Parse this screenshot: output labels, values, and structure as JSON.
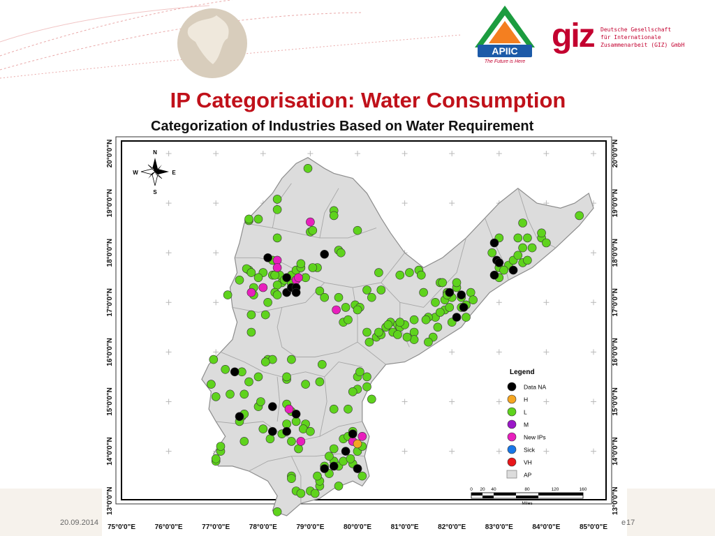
{
  "header": {
    "apiic_logo": {
      "name": "APIIC",
      "tagline": "The Future is Here"
    },
    "giz_logo": {
      "word": "giz",
      "lines": [
        "Deutsche Gesellschaft",
        "für Internationale",
        "Zusammenarbeit (GIZ) GmbH"
      ]
    }
  },
  "slide": {
    "title": "IP Categorisation: Water Consumption",
    "date": "20.09.2014",
    "page_prefix": "e",
    "page_number": "17"
  },
  "map": {
    "title": "Categorization of Industries Based on Water Requirement",
    "compass": {
      "n": "N",
      "s": "S",
      "e": "E",
      "w": "W"
    },
    "x_ticks": [
      "75°0'0\"E",
      "76°0'0\"E",
      "77°0'0\"E",
      "78°0'0\"E",
      "79°0'0\"E",
      "80°0'0\"E",
      "81°0'0\"E",
      "82°0'0\"E",
      "83°0'0\"E",
      "84°0'0\"E",
      "85°0'0\"E"
    ],
    "y_ticks": [
      "20°0'0\"N",
      "19°0'0\"N",
      "18°0'0\"N",
      "17°0'0\"N",
      "16°0'0\"N",
      "15°0'0\"N",
      "14°0'0\"N",
      "13°0'0\"N"
    ],
    "legend": {
      "title": "Legend",
      "items": [
        {
          "label": "Data NA",
          "color": "#000000",
          "shape": "circle"
        },
        {
          "label": "H",
          "color": "#f5a623",
          "shape": "circle"
        },
        {
          "label": "L",
          "color": "#5fd31d",
          "shape": "circle"
        },
        {
          "label": "M",
          "color": "#9b17c8",
          "shape": "circle"
        },
        {
          "label": "New IPs",
          "color": "#e81fbd",
          "shape": "circle"
        },
        {
          "label": "Sick",
          "color": "#1877e8",
          "shape": "circle"
        },
        {
          "label": "VH",
          "color": "#e8161a",
          "shape": "circle"
        },
        {
          "label": "AP",
          "color": "#dcdcdc",
          "shape": "area"
        }
      ]
    },
    "scale_bar": {
      "labels": [
        "0",
        "20",
        "40",
        "80",
        "120",
        "160"
      ],
      "unit": "Miles"
    },
    "points": {
      "Data NA": [
        [
          78.1,
          17.9
        ],
        [
          78.5,
          17.5
        ],
        [
          78.5,
          17.2
        ],
        [
          78.6,
          17.3
        ],
        [
          78.7,
          17.3
        ],
        [
          78.7,
          17.2
        ],
        [
          79.3,
          17.97
        ],
        [
          82.9,
          18.2
        ],
        [
          82.95,
          17.85
        ],
        [
          83.0,
          17.8
        ],
        [
          82.9,
          17.55
        ],
        [
          83.3,
          17.65
        ],
        [
          81.95,
          17.2
        ],
        [
          82.2,
          17.15
        ],
        [
          82.25,
          16.9
        ],
        [
          82.1,
          16.7
        ],
        [
          77.4,
          15.6
        ],
        [
          78.2,
          14.9
        ],
        [
          78.7,
          14.75
        ],
        [
          78.5,
          14.4
        ],
        [
          79.9,
          14.35
        ],
        [
          79.75,
          14.0
        ],
        [
          79.5,
          13.7
        ],
        [
          79.3,
          13.65
        ],
        [
          80.0,
          13.65
        ],
        [
          77.5,
          14.7
        ],
        [
          78.2,
          14.4
        ]
      ],
      "New IPs": [
        [
          79.0,
          18.62
        ],
        [
          78.3,
          17.85
        ],
        [
          78.3,
          17.7
        ],
        [
          78.0,
          17.3
        ],
        [
          77.75,
          17.2
        ],
        [
          78.7,
          17.45
        ],
        [
          79.55,
          16.85
        ],
        [
          78.55,
          14.85
        ],
        [
          78.8,
          14.2
        ],
        [
          79.9,
          14.2
        ],
        [
          80.1,
          14.3
        ],
        [
          78.75,
          17.5
        ]
      ],
      "H": [
        [
          80.0,
          14.15
        ]
      ],
      "L": [
        [
          78.95,
          19.7
        ],
        [
          78.3,
          19.08
        ],
        [
          78.3,
          18.87
        ],
        [
          79.5,
          18.85
        ],
        [
          79.5,
          18.75
        ],
        [
          77.7,
          18.65
        ],
        [
          77.9,
          18.68
        ],
        [
          77.7,
          18.68
        ],
        [
          78.3,
          18.3
        ],
        [
          79.0,
          18.42
        ],
        [
          79.05,
          18.45
        ],
        [
          80.0,
          18.45
        ],
        [
          79.6,
          18.05
        ],
        [
          79.65,
          18.0
        ],
        [
          78.2,
          17.85
        ],
        [
          77.7,
          17.65
        ],
        [
          77.65,
          17.68
        ],
        [
          78.0,
          17.6
        ],
        [
          78.2,
          17.55
        ],
        [
          78.35,
          17.55
        ],
        [
          78.6,
          17.55
        ],
        [
          78.7,
          17.65
        ],
        [
          78.8,
          17.7
        ],
        [
          78.4,
          17.4
        ],
        [
          78.3,
          17.35
        ],
        [
          78.45,
          17.45
        ],
        [
          78.25,
          17.2
        ],
        [
          78.3,
          17.15
        ],
        [
          77.8,
          17.15
        ],
        [
          77.8,
          17.3
        ],
        [
          79.15,
          17.7
        ],
        [
          79.2,
          17.23
        ],
        [
          79.3,
          17.1
        ],
        [
          79.6,
          17.1
        ],
        [
          78.9,
          17.5
        ],
        [
          78.6,
          17.38
        ],
        [
          78.1,
          17.0
        ],
        [
          78.05,
          16.75
        ],
        [
          77.75,
          16.75
        ],
        [
          77.75,
          16.4
        ],
        [
          79.7,
          16.6
        ],
        [
          79.8,
          16.65
        ],
        [
          79.95,
          16.95
        ],
        [
          80.2,
          17.25
        ],
        [
          80.5,
          17.25
        ],
        [
          80.05,
          16.9
        ],
        [
          80.2,
          16.4
        ],
        [
          80.4,
          16.3
        ],
        [
          80.6,
          16.5
        ],
        [
          80.7,
          16.6
        ],
        [
          80.85,
          16.55
        ],
        [
          80.9,
          16.5
        ],
        [
          81.0,
          16.55
        ],
        [
          81.2,
          16.65
        ],
        [
          81.2,
          16.4
        ],
        [
          81.2,
          16.25
        ],
        [
          81.05,
          16.3
        ],
        [
          80.9,
          16.6
        ],
        [
          80.75,
          16.4
        ],
        [
          80.5,
          16.35
        ],
        [
          80.45,
          16.4
        ],
        [
          80.25,
          16.2
        ],
        [
          81.1,
          17.6
        ],
        [
          80.9,
          17.55
        ],
        [
          80.45,
          17.6
        ],
        [
          81.65,
          16.7
        ],
        [
          81.5,
          16.7
        ],
        [
          81.7,
          16.5
        ],
        [
          81.6,
          16.3
        ],
        [
          81.5,
          16.2
        ],
        [
          81.85,
          16.85
        ],
        [
          81.85,
          17.05
        ],
        [
          81.9,
          17.2
        ],
        [
          82.1,
          17.3
        ],
        [
          82.0,
          17.1
        ],
        [
          82.2,
          16.9
        ],
        [
          82.3,
          16.95
        ],
        [
          82.2,
          17.1
        ],
        [
          81.95,
          16.9
        ],
        [
          81.75,
          16.8
        ],
        [
          81.65,
          17.0
        ],
        [
          81.75,
          17.4
        ],
        [
          81.9,
          17.15
        ],
        [
          82.3,
          16.7
        ],
        [
          83.0,
          17.7
        ],
        [
          83.2,
          17.75
        ],
        [
          83.3,
          17.85
        ],
        [
          83.5,
          18.1
        ],
        [
          83.7,
          18.1
        ],
        [
          83.5,
          17.8
        ],
        [
          83.4,
          17.95
        ],
        [
          83.6,
          17.85
        ],
        [
          83.1,
          17.65
        ],
        [
          83.0,
          17.5
        ],
        [
          83.0,
          18.3
        ],
        [
          83.4,
          18.3
        ],
        [
          83.9,
          18.3
        ],
        [
          83.9,
          18.4
        ],
        [
          83.6,
          18.3
        ],
        [
          84.0,
          18.2
        ],
        [
          84.7,
          18.75
        ],
        [
          83.5,
          18.6
        ],
        [
          82.85,
          18.0
        ],
        [
          77.55,
          15.6
        ],
        [
          77.2,
          15.65
        ],
        [
          77.7,
          15.4
        ],
        [
          77.3,
          15.15
        ],
        [
          77.6,
          15.15
        ],
        [
          77.55,
          14.7
        ],
        [
          77.6,
          14.75
        ],
        [
          78.1,
          15.85
        ],
        [
          78.2,
          15.85
        ],
        [
          78.05,
          15.8
        ],
        [
          78.5,
          15.45
        ],
        [
          78.5,
          15.5
        ],
        [
          78.9,
          15.35
        ],
        [
          79.25,
          15.75
        ],
        [
          79.5,
          14.85
        ],
        [
          79.8,
          14.85
        ],
        [
          80.0,
          15.25
        ],
        [
          80.2,
          15.5
        ],
        [
          80.0,
          15.5
        ],
        [
          80.05,
          15.6
        ],
        [
          80.2,
          15.3
        ],
        [
          80.3,
          15.05
        ],
        [
          79.9,
          15.2
        ],
        [
          78.6,
          15.85
        ],
        [
          78.5,
          14.95
        ],
        [
          78.6,
          14.8
        ],
        [
          78.5,
          14.55
        ],
        [
          78.7,
          14.6
        ],
        [
          78.9,
          14.55
        ],
        [
          78.85,
          14.45
        ],
        [
          79.0,
          14.4
        ],
        [
          78.75,
          14.05
        ],
        [
          78.6,
          14.2
        ],
        [
          78.4,
          14.35
        ],
        [
          78.15,
          14.25
        ],
        [
          78.0,
          14.45
        ],
        [
          77.9,
          14.9
        ],
        [
          77.95,
          15.0
        ],
        [
          77.5,
          14.6
        ],
        [
          77.0,
          13.8
        ],
        [
          77.0,
          13.85
        ],
        [
          77.1,
          14.0
        ],
        [
          77.1,
          14.1
        ],
        [
          77.6,
          14.2
        ],
        [
          78.6,
          13.5
        ],
        [
          78.6,
          13.45
        ],
        [
          78.7,
          13.2
        ],
        [
          78.8,
          13.15
        ],
        [
          79.0,
          13.2
        ],
        [
          79.1,
          13.15
        ],
        [
          79.2,
          13.3
        ],
        [
          79.2,
          13.4
        ],
        [
          79.15,
          13.5
        ],
        [
          79.3,
          13.7
        ],
        [
          79.4,
          13.55
        ],
        [
          79.5,
          13.8
        ],
        [
          79.6,
          13.7
        ],
        [
          79.7,
          13.8
        ],
        [
          79.9,
          13.75
        ],
        [
          80.0,
          13.65
        ],
        [
          80.1,
          13.5
        ],
        [
          79.85,
          13.85
        ],
        [
          79.6,
          13.3
        ],
        [
          79.4,
          13.9
        ],
        [
          79.5,
          14.05
        ],
        [
          79.7,
          14.25
        ],
        [
          79.8,
          14.3
        ],
        [
          79.9,
          14.4
        ],
        [
          80.0,
          14.0
        ],
        [
          80.1,
          14.1
        ],
        [
          79.2,
          15.4
        ],
        [
          77.0,
          15.1
        ],
        [
          76.9,
          15.35
        ],
        [
          76.95,
          15.85
        ],
        [
          78.3,
          12.78
        ],
        [
          77.9,
          15.5
        ],
        [
          78.8,
          17.78
        ],
        [
          78.25,
          17.55
        ],
        [
          77.25,
          17.15
        ],
        [
          77.75,
          17.6
        ],
        [
          77.5,
          17.45
        ],
        [
          77.9,
          17.5
        ],
        [
          79.05,
          17.7
        ],
        [
          79.75,
          16.9
        ],
        [
          80.0,
          16.85
        ],
        [
          80.3,
          17.1
        ],
        [
          80.65,
          16.55
        ],
        [
          80.85,
          16.35
        ],
        [
          81.45,
          16.65
        ],
        [
          81.3,
          17.65
        ],
        [
          81.35,
          17.55
        ],
        [
          82.0,
          16.6
        ],
        [
          81.4,
          17.2
        ],
        [
          81.8,
          17.4
        ],
        [
          82.1,
          17.4
        ],
        [
          82.4,
          17.2
        ],
        [
          82.45,
          17.05
        ]
      ]
    }
  }
}
